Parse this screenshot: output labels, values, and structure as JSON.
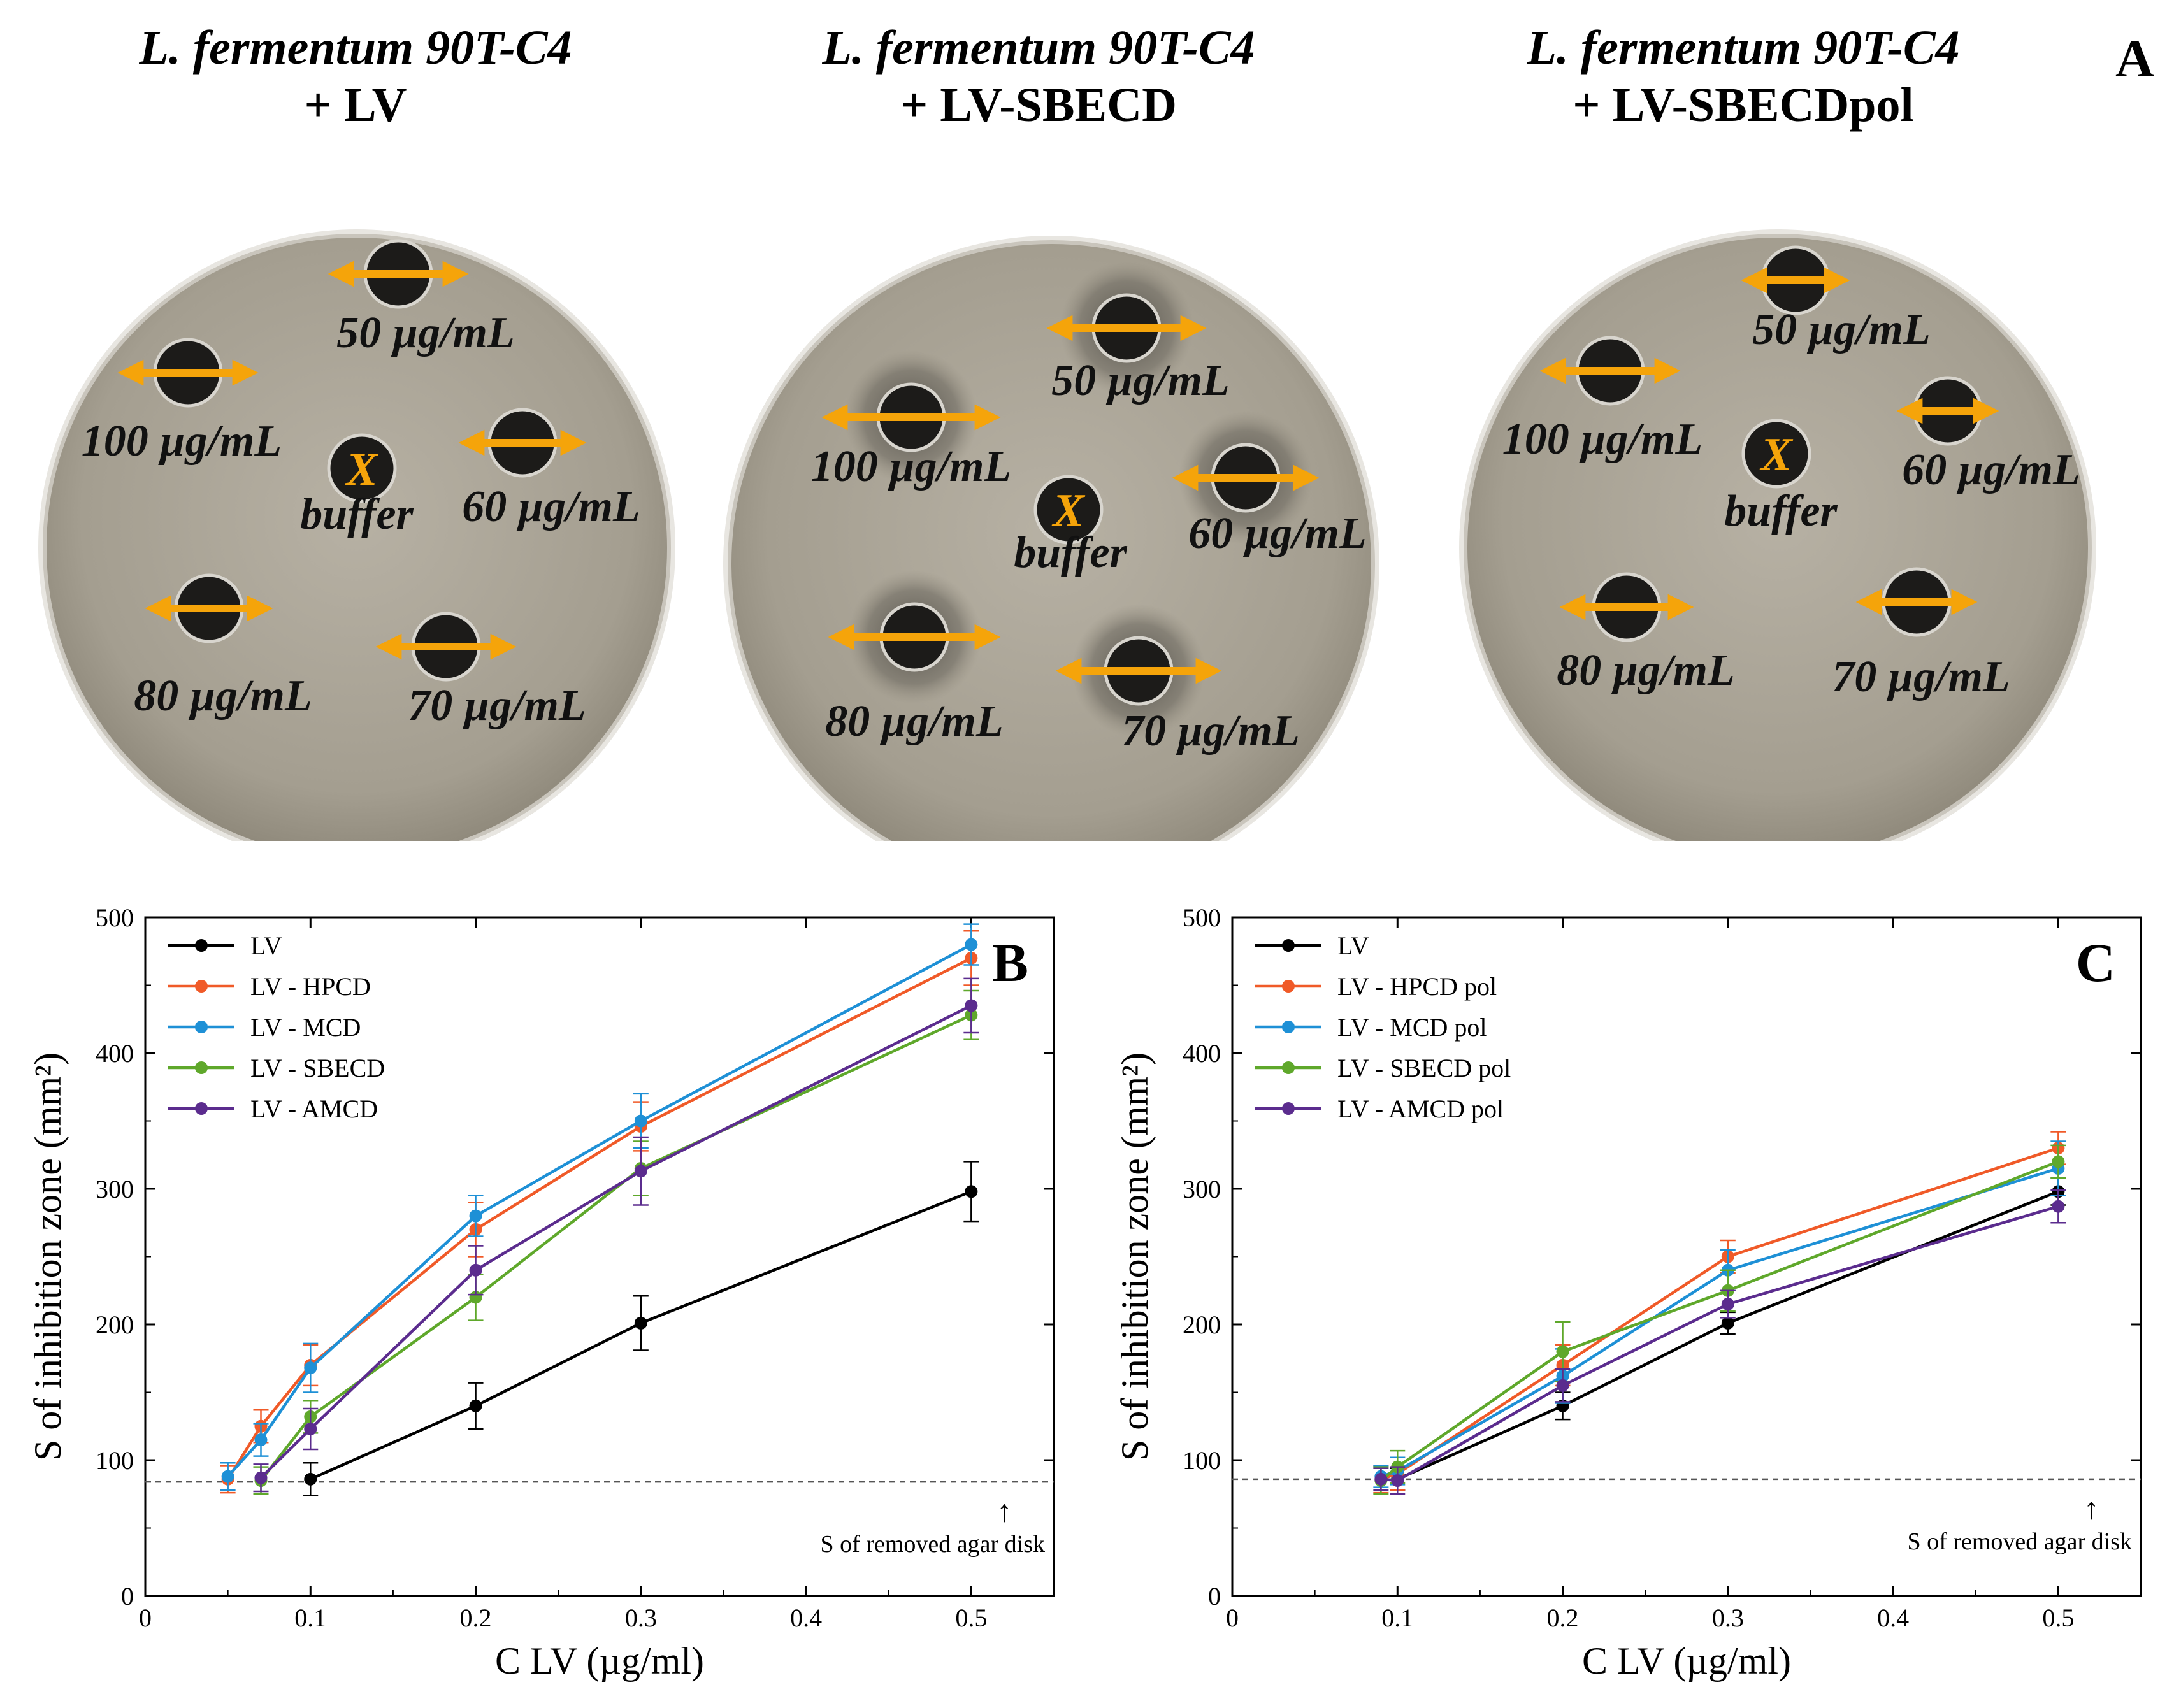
{
  "panel_a": {
    "letter": "A",
    "plates": [
      {
        "strain": "L. fermentum 90T-C4",
        "treatment": "+ LV",
        "center_label": "buffer",
        "center_mark": "X",
        "wells": [
          "50 µg/mL",
          "100 µg/mL",
          "60 µg/mL",
          "80 µg/mL",
          "70 µg/mL"
        ]
      },
      {
        "strain": "L. fermentum 90T-C4",
        "treatment": "+ LV-SBECD",
        "center_label": "buffer",
        "center_mark": "X",
        "wells": [
          "50 µg/mL",
          "100 µg/mL",
          "60 µg/mL",
          "80 µg/mL",
          "70 µg/mL"
        ]
      },
      {
        "strain": "L. fermentum 90T-C4",
        "treatment": "+ LV-SBECDpol",
        "center_label": "buffer",
        "center_mark": "X",
        "wells": [
          "50 µg/mL",
          "100 µg/mL",
          "60 µg/mL",
          "80 µg/mL",
          "70 µg/mL"
        ]
      }
    ],
    "colors": {
      "arrow": "#F5A40A",
      "x_mark": "#F5A40A",
      "plate": "#a8a295",
      "well": "#1a1a1a"
    }
  },
  "chart_data": [
    {
      "type": "line",
      "panel_letter": "B",
      "xlabel": "C LV (µg/ml)",
      "ylabel": "S of inhibition zone (mm²)",
      "xlim": [
        0,
        0.55
      ],
      "ylim": [
        0,
        500
      ],
      "xticks": [
        0,
        0.1,
        0.2,
        0.3,
        0.4,
        0.5
      ],
      "xtick_labels": [
        "0",
        "0.1",
        "0.2",
        "0.3",
        "0.4",
        "0.5"
      ],
      "yticks": [
        0,
        100,
        200,
        300,
        400,
        500
      ],
      "ytick_labels": [
        "0",
        "100",
        "200",
        "300",
        "400",
        "500"
      ],
      "legend_position": "top-left",
      "reference_line": {
        "y": 84,
        "label": "S of removed agar disk",
        "arrow": "↑",
        "x": 0.52
      },
      "series": [
        {
          "name": "LV",
          "color": "#000000",
          "x": [
            0.1,
            0.2,
            0.3,
            0.5
          ],
          "y": [
            86,
            140,
            201,
            298
          ],
          "err": [
            12,
            17,
            20,
            22
          ]
        },
        {
          "name": "LV - HPCD",
          "color": "#F05A28",
          "x": [
            0.05,
            0.07,
            0.1,
            0.2,
            0.3,
            0.5
          ],
          "y": [
            86,
            125,
            170,
            270,
            346,
            470
          ],
          "err": [
            10,
            12,
            15,
            20,
            18,
            20
          ]
        },
        {
          "name": "LV - MCD",
          "color": "#1E90D6",
          "x": [
            0.05,
            0.07,
            0.1,
            0.2,
            0.3,
            0.5
          ],
          "y": [
            88,
            115,
            168,
            280,
            350,
            480
          ],
          "err": [
            10,
            12,
            18,
            15,
            20,
            15
          ]
        },
        {
          "name": "LV - SBECD",
          "color": "#5FA82B",
          "x": [
            0.07,
            0.1,
            0.2,
            0.3,
            0.5
          ],
          "y": [
            85,
            132,
            220,
            315,
            428
          ],
          "err": [
            10,
            12,
            17,
            20,
            18
          ]
        },
        {
          "name": "LV - AMCD",
          "color": "#5B2C8E",
          "x": [
            0.07,
            0.1,
            0.2,
            0.3,
            0.5
          ],
          "y": [
            87,
            123,
            240,
            313,
            435
          ],
          "err": [
            10,
            15,
            18,
            25,
            20
          ]
        }
      ]
    },
    {
      "type": "line",
      "panel_letter": "C",
      "xlabel": "C LV (µg/ml)",
      "ylabel": "S of inhibition zone (mm²)",
      "xlim": [
        0,
        0.55
      ],
      "ylim": [
        0,
        500
      ],
      "xticks": [
        0,
        0.1,
        0.2,
        0.3,
        0.4,
        0.5
      ],
      "xtick_labels": [
        "0",
        "0.1",
        "0.2",
        "0.3",
        "0.4",
        "0.5"
      ],
      "yticks": [
        0,
        100,
        200,
        300,
        400,
        500
      ],
      "ytick_labels": [
        "0",
        "100",
        "200",
        "300",
        "400",
        "500"
      ],
      "legend_position": "top-left",
      "reference_line": {
        "y": 86,
        "label": "S of removed agar disk",
        "arrow": "↑",
        "x": 0.52
      },
      "series": [
        {
          "name": "LV",
          "color": "#000000",
          "x": [
            0.1,
            0.2,
            0.3,
            0.5
          ],
          "y": [
            86,
            140,
            201,
            298
          ],
          "err": [
            8,
            10,
            8,
            10
          ]
        },
        {
          "name": "LV - HPCD pol",
          "color": "#F05A28",
          "x": [
            0.09,
            0.1,
            0.2,
            0.3,
            0.5
          ],
          "y": [
            86,
            90,
            170,
            250,
            330
          ],
          "err": [
            10,
            12,
            15,
            12,
            12
          ]
        },
        {
          "name": "LV - MCD pol",
          "color": "#1E90D6",
          "x": [
            0.09,
            0.1,
            0.2,
            0.3,
            0.5
          ],
          "y": [
            88,
            92,
            162,
            240,
            315
          ],
          "err": [
            8,
            10,
            20,
            15,
            20
          ]
        },
        {
          "name": "LV - SBECD pol",
          "color": "#5FA82B",
          "x": [
            0.09,
            0.1,
            0.2,
            0.3,
            0.5
          ],
          "y": [
            85,
            95,
            180,
            225,
            320
          ],
          "err": [
            10,
            12,
            22,
            15,
            12
          ]
        },
        {
          "name": "LV - AMCD pol",
          "color": "#5B2C8E",
          "x": [
            0.09,
            0.1,
            0.2,
            0.3,
            0.5
          ],
          "y": [
            86,
            85,
            155,
            215,
            287
          ],
          "err": [
            8,
            10,
            12,
            10,
            12
          ]
        }
      ]
    }
  ]
}
